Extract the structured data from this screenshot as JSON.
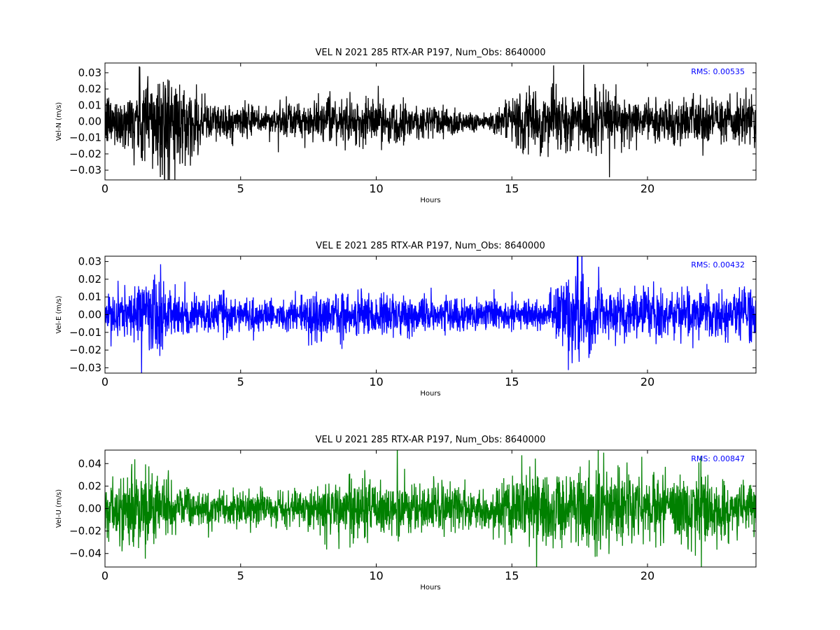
{
  "chart_data": [
    {
      "type": "line",
      "title": "VEL N 2021 285 RTX-AR  P197, Num_Obs: 8640000",
      "xlabel": "Hours",
      "ylabel": "Vel-N (m/s)",
      "xlim": [
        0,
        24
      ],
      "ylim": [
        -0.036,
        0.036
      ],
      "xticks": [
        "0",
        "5",
        "10",
        "15",
        "20"
      ],
      "xtick_values": [
        0,
        5,
        10,
        15,
        20
      ],
      "yticks": [
        "−0.03",
        "−0.02",
        "−0.01",
        "0.00",
        "0.01",
        "0.02",
        "0.03"
      ],
      "ytick_values": [
        -0.03,
        -0.02,
        -0.01,
        0.0,
        0.01,
        0.02,
        0.03
      ],
      "line_color": "#000000",
      "annotation": "RMS:  0.00535",
      "annotation_color": "#0000ff",
      "grid": false,
      "envelope": {
        "hours": [
          0,
          0.5,
          1,
          1.3,
          1.6,
          2,
          2.4,
          2.8,
          3.2,
          4,
          5,
          6,
          7,
          8,
          9,
          10,
          11,
          12,
          13,
          13.5,
          14,
          14.5,
          15,
          15.5,
          16,
          17,
          18,
          19,
          20,
          21,
          22,
          23,
          24
        ],
        "amplitude": [
          0.016,
          0.014,
          0.017,
          0.026,
          0.031,
          0.03,
          0.028,
          0.022,
          0.017,
          0.011,
          0.009,
          0.008,
          0.01,
          0.011,
          0.012,
          0.013,
          0.011,
          0.01,
          0.008,
          0.006,
          0.005,
          0.007,
          0.013,
          0.018,
          0.016,
          0.016,
          0.017,
          0.014,
          0.011,
          0.012,
          0.013,
          0.013,
          0.014
        ]
      }
    },
    {
      "type": "line",
      "title": "VEL E 2021 285 RTX-AR  P197, Num_Obs: 8640000",
      "xlabel": "Hours",
      "ylabel": "Vel-E (m/s)",
      "xlim": [
        0,
        24
      ],
      "ylim": [
        -0.033,
        0.033
      ],
      "xticks": [
        "0",
        "5",
        "10",
        "15",
        "20"
      ],
      "xtick_values": [
        0,
        5,
        10,
        15,
        20
      ],
      "yticks": [
        "−0.03",
        "−0.02",
        "−0.01",
        "0.00",
        "0.01",
        "0.02",
        "0.03"
      ],
      "ytick_values": [
        -0.03,
        -0.02,
        -0.01,
        0.0,
        0.01,
        0.02,
        0.03
      ],
      "line_color": "#0000ff",
      "annotation": "RMS:  0.00432",
      "annotation_color": "#0000ff",
      "grid": false,
      "envelope": {
        "hours": [
          0,
          0.5,
          1,
          1.4,
          1.8,
          2.2,
          2.6,
          3,
          4,
          5,
          6,
          7,
          7.3,
          7.6,
          8,
          9,
          10,
          11,
          12,
          13,
          14,
          15,
          16,
          16.5,
          17,
          17.3,
          17.7,
          18,
          19,
          20,
          21,
          22,
          23,
          24
        ],
        "amplitude": [
          0.011,
          0.01,
          0.013,
          0.02,
          0.023,
          0.018,
          0.012,
          0.011,
          0.01,
          0.009,
          0.008,
          0.008,
          0.009,
          0.014,
          0.012,
          0.011,
          0.012,
          0.011,
          0.009,
          0.008,
          0.007,
          0.008,
          0.008,
          0.01,
          0.022,
          0.028,
          0.021,
          0.014,
          0.012,
          0.013,
          0.011,
          0.012,
          0.013,
          0.015
        ]
      }
    },
    {
      "type": "line",
      "title": "VEL U 2021 285 RTX-AR  P197, Num_Obs: 8640000",
      "xlabel": "Hours",
      "ylabel": "Vel-U (m/s)",
      "xlim": [
        0,
        24
      ],
      "ylim": [
        -0.052,
        0.052
      ],
      "xticks": [
        "0",
        "5",
        "10",
        "15",
        "20"
      ],
      "xtick_values": [
        0,
        5,
        10,
        15,
        20
      ],
      "yticks": [
        "−0.04",
        "−0.02",
        "0.00",
        "0.02",
        "0.04"
      ],
      "ytick_values": [
        -0.04,
        -0.02,
        0.0,
        0.02,
        0.04
      ],
      "line_color": "#008000",
      "annotation": "RMS:  0.00847",
      "annotation_color": "#0000ff",
      "grid": false,
      "envelope": {
        "hours": [
          0,
          0.5,
          1,
          1.3,
          1.6,
          2,
          2.5,
          3,
          4,
          5,
          6,
          7,
          7.5,
          8,
          9,
          10,
          11,
          12,
          13,
          14,
          15,
          16,
          17,
          18,
          19,
          20,
          21,
          22,
          23,
          24
        ],
        "amplitude": [
          0.022,
          0.025,
          0.033,
          0.04,
          0.038,
          0.026,
          0.02,
          0.018,
          0.016,
          0.014,
          0.013,
          0.012,
          0.016,
          0.024,
          0.026,
          0.022,
          0.02,
          0.019,
          0.018,
          0.014,
          0.025,
          0.03,
          0.026,
          0.033,
          0.028,
          0.024,
          0.027,
          0.03,
          0.022,
          0.018
        ]
      }
    }
  ]
}
